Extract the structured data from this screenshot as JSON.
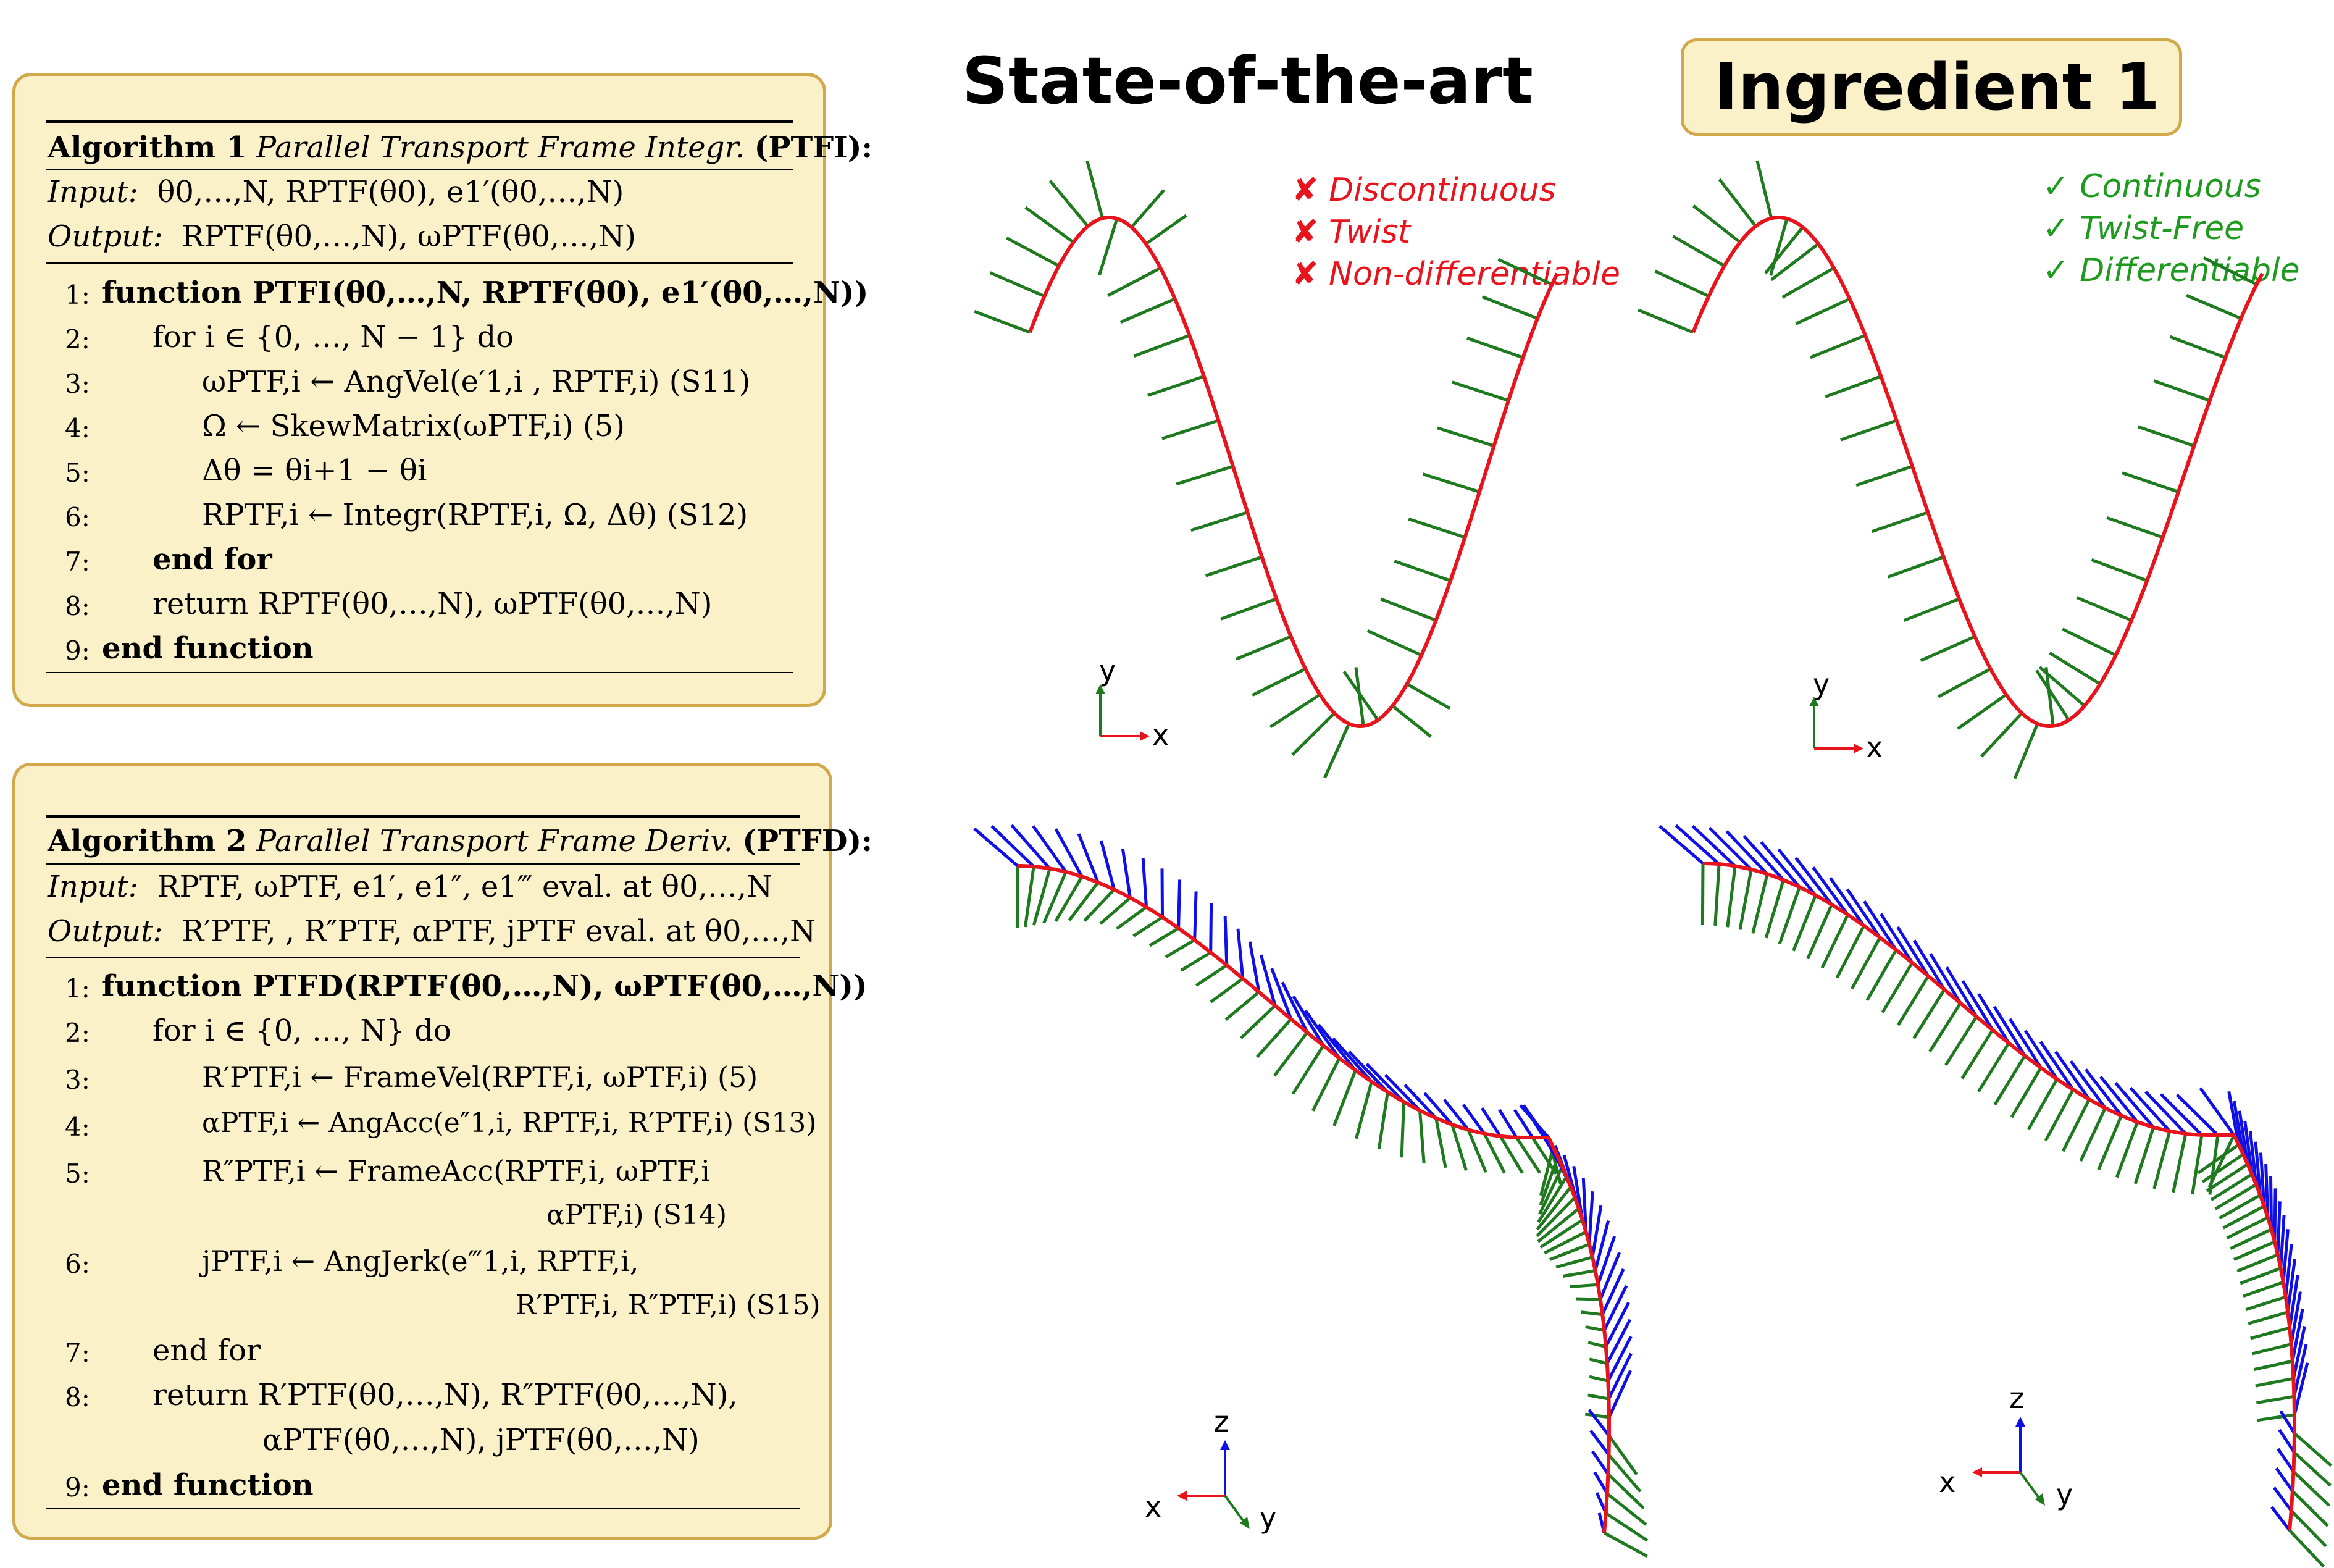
{
  "algorithm1": {
    "label": "Algorithm 1",
    "name": "Parallel Transport Frame Integr.",
    "abbr": "(PTFI):",
    "input_label": "Input:",
    "input_value": "θ0,…,N, RPTF(θ0), e1′(θ0,…,N)",
    "output_label": "Output:",
    "output_value": "RPTF(θ0,…,N), ωPTF(θ0,…,N)",
    "lines": [
      {
        "num": "1:",
        "text": "function PTFI(θ0,…,N, RPTF(θ0), e1′(θ0,…,N))"
      },
      {
        "num": "2:",
        "text": "for i ∈ {0, …, N − 1} do"
      },
      {
        "num": "3:",
        "text": "ωPTF,i ← AngVel(e′1,i , RPTF,i) (S11)"
      },
      {
        "num": "4:",
        "text": "Ω ← SkewMatrix(ωPTF,i) (5)"
      },
      {
        "num": "5:",
        "text": "Δθ = θi+1 − θi"
      },
      {
        "num": "6:",
        "text": "RPTF,i ← Integr(RPTF,i, Ω, Δθ) (S12)"
      },
      {
        "num": "7:",
        "text": "end for"
      },
      {
        "num": "8:",
        "text": "return RPTF(θ0,…,N), ωPTF(θ0,…,N)"
      },
      {
        "num": "9:",
        "text": "end function"
      }
    ]
  },
  "algorithm2": {
    "label": "Algorithm 2",
    "name": "Parallel Transport Frame Deriv.",
    "abbr": "(PTFD):",
    "input_label": "Input:",
    "input_value": "RPTF, ωPTF, e1′, e1″, e1‴ eval. at θ0,…,N",
    "output_label": "Output:",
    "output_value": "R′PTF, , R″PTF, αPTF, jPTF eval. at θ0,…,N",
    "lines": [
      {
        "num": "1:",
        "text": "function PTFD(RPTF(θ0,…,N), ωPTF(θ0,…,N))"
      },
      {
        "num": "2:",
        "text": "for i ∈ {0, …, N} do"
      },
      {
        "num": "3:",
        "text": "R′PTF,i ← FrameVel(RPTF,i, ωPTF,i) (5)"
      },
      {
        "num": "4:",
        "text": "αPTF,i ← AngAcc(e″1,i, RPTF,i, R′PTF,i) (S13)"
      },
      {
        "num": "5:",
        "text": "R″PTF,i ← FrameAcc(RPTF,i, ωPTF,i"
      },
      {
        "num": "",
        "text": "αPTF,i) (S14)"
      },
      {
        "num": "6:",
        "text": "jPTF,i ← AngJerk(e‴1,i, RPTF,i,"
      },
      {
        "num": "",
        "text": "R′PTF,i, R″PTF,i) (S15)"
      },
      {
        "num": "7:",
        "text": "end for"
      },
      {
        "num": "8:",
        "text": "return R′PTF(θ0,…,N), R″PTF(θ0,…,N),"
      },
      {
        "num": "",
        "text": "αPTF(θ0,…,N), jPTF(θ0,…,N)"
      },
      {
        "num": "9:",
        "text": "end function"
      }
    ]
  },
  "panels": {
    "left_title": "State-of-the-art",
    "right_title": "Ingredient 1",
    "left_features": [
      {
        "mark": "✘",
        "text": "Discontinuous"
      },
      {
        "mark": "✘",
        "text": "Twist"
      },
      {
        "mark": "✘",
        "text": "Non-differentiable"
      }
    ],
    "right_features": [
      {
        "mark": "✓",
        "text": "Continuous"
      },
      {
        "mark": "✓",
        "text": "Twist-Free"
      },
      {
        "mark": "✓",
        "text": "Differentiable"
      }
    ],
    "axes_2d": {
      "x": "x",
      "y": "y"
    },
    "axes_3d": {
      "x": "x",
      "y": "y",
      "z": "z"
    }
  },
  "colors": {
    "curve": "#e8141d",
    "normal": "#1f7a1f",
    "binormal": "#1010e6",
    "bad": "#e8141d",
    "good": "#1e9b1e",
    "box_fill": "#fbf1c9",
    "box_border": "#d1a84a"
  }
}
